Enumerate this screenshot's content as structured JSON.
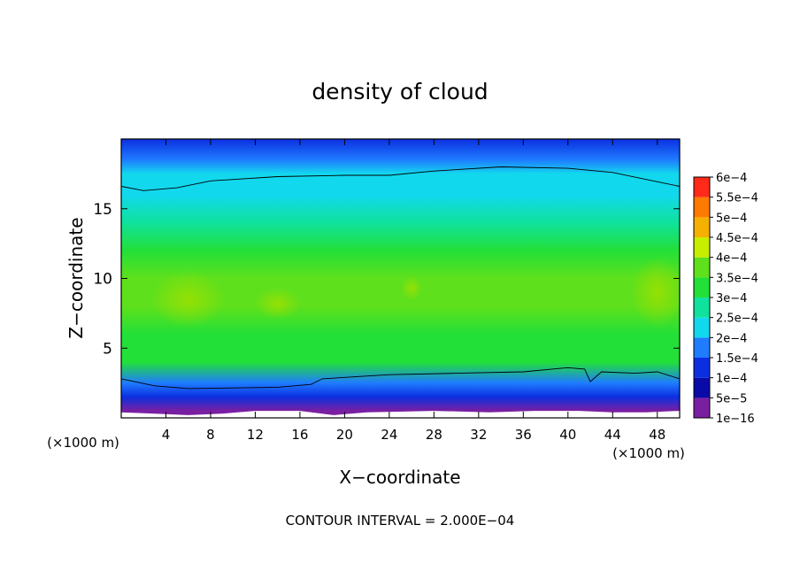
{
  "chart_data": {
    "type": "heatmap",
    "title": "density of cloud",
    "xlabel": "X−coordinate",
    "ylabel": "Z−coordinate",
    "x_unit": "(×1000 m)",
    "y_unit": "(×1000 m)",
    "xlim": [
      0,
      50
    ],
    "ylim": [
      0,
      20
    ],
    "x_ticks": [
      4,
      8,
      12,
      16,
      20,
      24,
      28,
      32,
      36,
      40,
      44,
      48
    ],
    "y_ticks": [
      5,
      10,
      15
    ],
    "contour_interval_text": "CONTOUR INTERVAL = 2.000E−04",
    "colorbar": {
      "labels": [
        "1e−16",
        "5e−5",
        "1e−4",
        "1.5e−4",
        "2e−4",
        "2.5e−4",
        "3e−4",
        "3.5e−4",
        "4e−4",
        "4.5e−4",
        "5e−4",
        "5.5e−4",
        "6e−4"
      ],
      "values": [
        1e-16,
        5e-05,
        0.0001,
        0.00015,
        0.0002,
        0.00025,
        0.0003,
        0.00035,
        0.0004,
        0.00045,
        0.0005,
        0.00055,
        0.0006
      ],
      "colors": [
        "#7a1fa2",
        "#0a0aa8",
        "#0b2fe0",
        "#1f7cff",
        "#12d8ee",
        "#0fe29c",
        "#22e038",
        "#5fe01c",
        "#c7ee00",
        "#f6b000",
        "#ff7a00",
        "#ff2a1a",
        "#ff8d8d"
      ]
    },
    "vertical_profile": [
      {
        "z": 0.5,
        "value": 3e-05
      },
      {
        "z": 1.5,
        "value": 0.0001
      },
      {
        "z": 2.5,
        "value": 0.00019
      },
      {
        "z": 4,
        "value": 0.0003
      },
      {
        "z": 6,
        "value": 0.00034
      },
      {
        "z": 8,
        "value": 0.00036
      },
      {
        "z": 10,
        "value": 0.00035
      },
      {
        "z": 12,
        "value": 0.00032
      },
      {
        "z": 14,
        "value": 0.00029
      },
      {
        "z": 16,
        "value": 0.00024
      },
      {
        "z": 17.5,
        "value": 0.0002
      },
      {
        "z": 18.5,
        "value": 0.00016
      },
      {
        "z": 20,
        "value": 0.00011
      }
    ],
    "contour_lines": [
      {
        "value": 0.0002,
        "points": [
          [
            0,
            16.6
          ],
          [
            2,
            16.3
          ],
          [
            5,
            16.5
          ],
          [
            8,
            17.0
          ],
          [
            14,
            17.3
          ],
          [
            20,
            17.4
          ],
          [
            24,
            17.4
          ],
          [
            28,
            17.7
          ],
          [
            34,
            18.0
          ],
          [
            40,
            17.9
          ],
          [
            44,
            17.6
          ],
          [
            47,
            17.1
          ],
          [
            50,
            16.6
          ]
        ]
      },
      {
        "value": 0.0002,
        "points": [
          [
            0,
            2.8
          ],
          [
            3,
            2.3
          ],
          [
            6,
            2.1
          ],
          [
            14,
            2.2
          ],
          [
            17,
            2.4
          ],
          [
            18,
            2.8
          ],
          [
            24,
            3.1
          ],
          [
            30,
            3.2
          ],
          [
            36,
            3.3
          ],
          [
            40,
            3.6
          ],
          [
            41.5,
            3.5
          ],
          [
            42,
            2.6
          ],
          [
            43,
            3.3
          ],
          [
            46,
            3.2
          ],
          [
            48,
            3.3
          ],
          [
            50,
            2.8
          ]
        ]
      }
    ],
    "ground_clearance": [
      [
        0,
        0.4
      ],
      [
        3,
        0.3
      ],
      [
        6,
        0.2
      ],
      [
        9,
        0.3
      ],
      [
        12,
        0.5
      ],
      [
        16,
        0.5
      ],
      [
        19,
        0.2
      ],
      [
        22,
        0.4
      ],
      [
        28,
        0.5
      ],
      [
        33,
        0.4
      ],
      [
        37,
        0.5
      ],
      [
        41,
        0.5
      ],
      [
        44,
        0.4
      ],
      [
        47,
        0.4
      ],
      [
        50,
        0.5
      ]
    ],
    "grid": false,
    "legend_position": "right"
  }
}
